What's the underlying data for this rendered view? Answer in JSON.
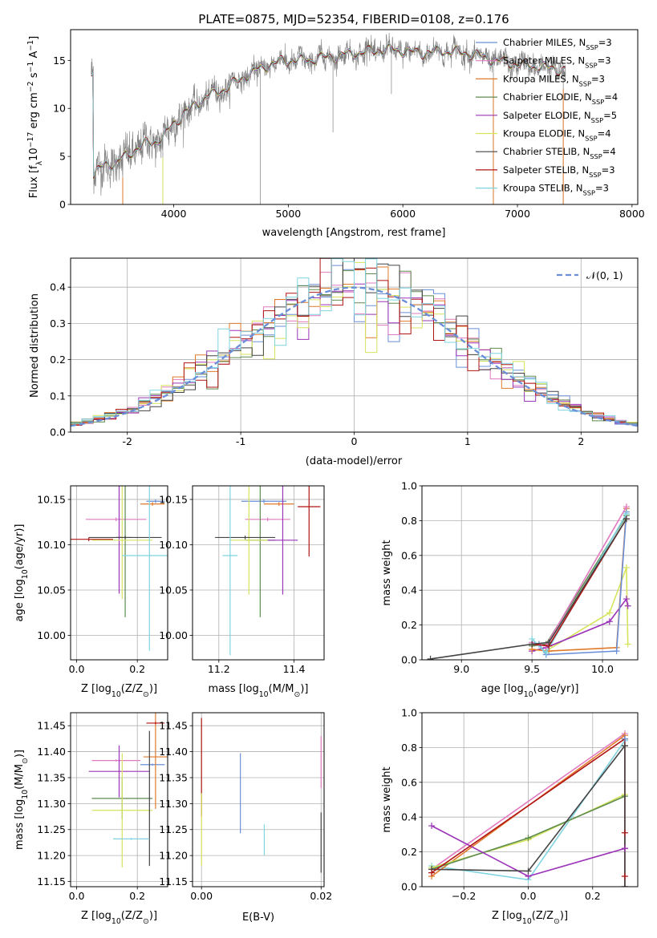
{
  "colors": {
    "gray": "#808080",
    "Chabrier MILES": "#6a8fd8",
    "Salpeter MILES": "#e07ac0",
    "Kroupa MILES": "#e07a2a",
    "Chabrier ELODIE": "#5e8c4f",
    "Salpeter ELODIE": "#9b34b8",
    "Kroupa ELODIE": "#d6e35c",
    "Chabrier STELIB": "#444444",
    "Salpeter STELIB": "#b01414",
    "Kroupa STELIB": "#7fd4e0",
    "gauss": "#6a8fd8"
  },
  "chart_data": [
    {
      "id": "spectrum",
      "type": "line",
      "title": "PLATE=0875, MJD=52354, FIBERID=0108, z=0.176",
      "xlabel": "wavelength [Angstrom, rest frame]",
      "ylabel": "Flux [f",
      "ylabel_sub": "λ",
      "ylabel_mid": "10",
      "ylabel_sup": "−17",
      "ylabel_tail": " erg cm",
      "ylabel_sup2": "−2",
      "ylabel_tail2": " s",
      "ylabel_sup3": "−1",
      "ylabel_tail3": " A",
      "ylabel_sup4": "−1",
      "ylabel_end": "]",
      "xlim": [
        3100,
        8050
      ],
      "ylim": [
        0,
        18.2
      ],
      "xticks": [
        4000,
        5000,
        6000,
        7000,
        8000
      ],
      "yticks": [
        0,
        5,
        10,
        15
      ],
      "continuum": [
        [
          3300,
          3.0
        ],
        [
          3400,
          4.2
        ],
        [
          3500,
          4.3
        ],
        [
          3600,
          5.2
        ],
        [
          3700,
          6.0
        ],
        [
          3800,
          6.5
        ],
        [
          3900,
          6.8
        ],
        [
          4000,
          8.5
        ],
        [
          4100,
          9.5
        ],
        [
          4200,
          10.5
        ],
        [
          4300,
          11.3
        ],
        [
          4400,
          11.8
        ],
        [
          4500,
          12.4
        ],
        [
          4600,
          13.2
        ],
        [
          4700,
          13.8
        ],
        [
          4800,
          14.4
        ],
        [
          4900,
          14.8
        ],
        [
          5000,
          15.0
        ],
        [
          5100,
          15.0
        ],
        [
          5200,
          15.1
        ],
        [
          5300,
          15.3
        ],
        [
          5400,
          15.4
        ],
        [
          5500,
          15.6
        ],
        [
          5600,
          15.8
        ],
        [
          5700,
          15.9
        ],
        [
          5800,
          16.1
        ],
        [
          5900,
          16.1
        ],
        [
          6000,
          16.0
        ],
        [
          6100,
          15.8
        ],
        [
          6200,
          15.8
        ],
        [
          6300,
          15.9
        ],
        [
          6400,
          16.0
        ],
        [
          6500,
          15.8
        ],
        [
          6600,
          15.7
        ],
        [
          6700,
          15.3
        ],
        [
          6800,
          15.0
        ],
        [
          6900,
          14.8
        ],
        [
          7000,
          14.6
        ],
        [
          7100,
          14.5
        ],
        [
          7200,
          14.3
        ],
        [
          7300,
          14.2
        ],
        [
          7400,
          14.0
        ]
      ],
      "legend_placement": "right",
      "legend": [
        {
          "name": "Chabrier MILES, N",
          "sub": "SSP",
          "tail": "=3"
        },
        {
          "name": "Salpeter MILES, N",
          "sub": "SSP",
          "tail": "=3"
        },
        {
          "name": "Kroupa MILES, N",
          "sub": "SSP",
          "tail": "=3"
        },
        {
          "name": "Chabrier ELODIE, N",
          "sub": "SSP",
          "tail": "=4"
        },
        {
          "name": "Salpeter ELODIE, N",
          "sub": "SSP",
          "tail": "=5"
        },
        {
          "name": "Kroupa ELODIE, N",
          "sub": "SSP",
          "tail": "=4"
        },
        {
          "name": "Chabrier STELIB, N",
          "sub": "SSP",
          "tail": "=4"
        },
        {
          "name": "Salpeter STELIB, N",
          "sub": "SSP",
          "tail": "=3"
        },
        {
          "name": "Kroupa STELIB, N",
          "sub": "SSP",
          "tail": "=3"
        }
      ],
      "series_names": [
        "Chabrier MILES",
        "Salpeter MILES",
        "Kroupa MILES",
        "Chabrier ELODIE",
        "Salpeter ELODIE",
        "Kroupa ELODIE",
        "Chabrier STELIB",
        "Salpeter STELIB",
        "Kroupa STELIB"
      ]
    },
    {
      "id": "residuals",
      "type": "line",
      "xlabel": "(data-model)/error",
      "ylabel": "Normed distribution",
      "xlim": [
        -2.5,
        2.5
      ],
      "ylim": [
        0,
        0.48
      ],
      "xticks": [
        -2,
        -1,
        0,
        1,
        2
      ],
      "yticks": [
        0.0,
        0.1,
        0.2,
        0.3,
        0.4
      ],
      "legend_placement": "top-right",
      "legend": "𝒩(0, 1)",
      "bin_width": 0.1
    },
    {
      "id": "age-vs-Z",
      "type": "scatter",
      "xlabel": "Z [log",
      "xlabel_sub": "10",
      "xlabel_tail": "(Z/Z",
      "xlabel_sub2": "⊙",
      "xlabel_end": ")]",
      "ylabel": "age  [log",
      "ylabel_sub": "10",
      "ylabel_end": "(age/yr)]",
      "xlim": [
        -0.02,
        0.3
      ],
      "ylim": [
        9.973,
        10.165
      ],
      "xticks": [
        0.0,
        0.2
      ],
      "yticks": [
        10.0,
        10.05,
        10.1,
        10.15
      ],
      "points": [
        {
          "series": "Chabrier MILES",
          "x": 0.26,
          "y": 10.148,
          "ex": 0.03,
          "ey": 0.002
        },
        {
          "series": "Salpeter MILES",
          "x": 0.13,
          "y": 10.128,
          "ex": 0.1,
          "ey": 0.002
        },
        {
          "series": "Kroupa MILES",
          "x": 0.25,
          "y": 10.145,
          "ex": 0.04,
          "ey": 0.002
        },
        {
          "series": "Chabrier ELODIE",
          "x": 0.16,
          "y": 10.108,
          "ex": 0.02,
          "ey": 0.088
        },
        {
          "series": "Salpeter ELODIE",
          "x": 0.14,
          "y": 10.108,
          "ex": 0.01,
          "ey": 0.062
        },
        {
          "series": "Kroupa ELODIE",
          "x": 0.15,
          "y": 10.105,
          "ex": 0.1,
          "ey": 0.065
        },
        {
          "series": "Chabrier STELIB",
          "x": 0.16,
          "y": 10.108,
          "ex": 0.12,
          "ey": 0.002
        },
        {
          "series": "Salpeter STELIB",
          "x": 0.04,
          "y": 10.106,
          "ex": 0.08,
          "ey": 0.002
        },
        {
          "series": "Kroupa STELIB",
          "x": 0.24,
          "y": 10.088,
          "ex": 0.09,
          "ey": 0.105
        }
      ]
    },
    {
      "id": "age-vs-mass",
      "type": "scatter",
      "xlabel": "mass [log",
      "xlabel_sub": "10",
      "xlabel_tail": "(M/M",
      "xlabel_sub2": "⊙",
      "xlabel_end": ")]",
      "xlim": [
        11.13,
        11.48
      ],
      "ylim": [
        9.973,
        10.165
      ],
      "xticks": [
        11.2,
        11.4
      ],
      "yticks": [
        10.0,
        10.05,
        10.1,
        10.15
      ],
      "points": [
        {
          "series": "Chabrier MILES",
          "x": 11.32,
          "y": 10.148,
          "ex": 0.06,
          "ey": 0.002
        },
        {
          "series": "Salpeter MILES",
          "x": 11.33,
          "y": 10.128,
          "ex": 0.06,
          "ey": 0.002
        },
        {
          "series": "Kroupa MILES",
          "x": 11.36,
          "y": 10.145,
          "ex": 0.04,
          "ey": 0.002
        },
        {
          "series": "Chabrier ELODIE",
          "x": 11.31,
          "y": 10.105,
          "ex": 0.04,
          "ey": 0.085
        },
        {
          "series": "Salpeter ELODIE",
          "x": 11.37,
          "y": 10.105,
          "ex": 0.04,
          "ey": 0.06
        },
        {
          "series": "Kroupa ELODIE",
          "x": 11.28,
          "y": 10.105,
          "ex": 0.05,
          "ey": 0.06
        },
        {
          "series": "Chabrier STELIB",
          "x": 11.27,
          "y": 10.108,
          "ex": 0.08,
          "ey": 0.002
        },
        {
          "series": "Salpeter STELIB",
          "x": 11.44,
          "y": 10.142,
          "ex": 0.03,
          "ey": 0.055
        },
        {
          "series": "Kroupa STELIB",
          "x": 11.23,
          "y": 10.088,
          "ex": 0.02,
          "ey": 0.11
        }
      ]
    },
    {
      "id": "weight-vs-age",
      "type": "line",
      "xlabel": "age  [log",
      "xlabel_sub": "10",
      "xlabel_end": "(age/yr)]",
      "ylabel": "mass weight",
      "xlim": [
        8.72,
        10.25
      ],
      "ylim": [
        0,
        1
      ],
      "xticks": [
        9.0,
        9.5,
        10.0
      ],
      "yticks": [
        0.0,
        0.2,
        0.4,
        0.6,
        0.8,
        1.0
      ],
      "series": [
        {
          "name": "Kroupa ELODIE",
          "x": [
            9.5,
            9.6,
            10.05,
            10.17,
            10.18
          ],
          "y": [
            0.06,
            0.05,
            0.27,
            0.53,
            0.09
          ]
        },
        {
          "name": "Salpeter ELODIE",
          "x": [
            9.5,
            9.6,
            10.05,
            10.17,
            10.18
          ],
          "y": [
            0.05,
            0.07,
            0.22,
            0.35,
            0.31
          ]
        },
        {
          "name": "Chabrier ELODIE",
          "x": [
            9.5,
            9.6,
            10.17
          ],
          "y": [
            0.08,
            0.09,
            0.83
          ]
        },
        {
          "name": "Kroupa MILES",
          "x": [
            9.5,
            9.62,
            10.1,
            10.17
          ],
          "y": [
            0.06,
            0.05,
            0.07,
            0.87
          ]
        },
        {
          "name": "Chabrier MILES",
          "x": [
            9.55,
            9.6,
            10.1,
            10.17
          ],
          "y": [
            0.09,
            0.03,
            0.05,
            0.85
          ]
        },
        {
          "name": "Salpeter MILES",
          "x": [
            9.5,
            9.6,
            10.17
          ],
          "y": [
            0.1,
            0.08,
            0.88
          ]
        },
        {
          "name": "Kroupa STELIB",
          "x": [
            9.5,
            9.6,
            10.17
          ],
          "y": [
            0.12,
            0.04,
            0.84
          ]
        },
        {
          "name": "Salpeter STELIB",
          "x": [
            9.5,
            9.62,
            10.17
          ],
          "y": [
            0.09,
            0.08,
            0.81
          ]
        },
        {
          "name": "Chabrier STELIB",
          "x": [
            8.78,
            9.5,
            9.62,
            10.17
          ],
          "y": [
            0.005,
            0.09,
            0.1,
            0.81
          ]
        }
      ]
    },
    {
      "id": "mass-vs-Z",
      "type": "scatter",
      "xlabel": "Z [log",
      "xlabel_sub": "10",
      "xlabel_tail": "(Z/Z",
      "xlabel_sub2": "⊙",
      "xlabel_end": ")]",
      "ylabel": "mass [log",
      "ylabel_sub": "10",
      "ylabel_tail": "(M/M",
      "ylabel_sub2": "⊙",
      "ylabel_end": ")]",
      "xlim": [
        -0.02,
        0.3
      ],
      "ylim": [
        11.14,
        11.475
      ],
      "xticks": [
        0.0,
        0.2
      ],
      "yticks": [
        11.15,
        11.2,
        11.25,
        11.3,
        11.35,
        11.4,
        11.45
      ],
      "points": [
        {
          "series": "Chabrier MILES",
          "x": 0.25,
          "y": 11.375,
          "ex": 0.04,
          "ey": 0.002
        },
        {
          "series": "Salpeter MILES",
          "x": 0.13,
          "y": 11.383,
          "ex": 0.08,
          "ey": 0.002
        },
        {
          "series": "Kroupa MILES",
          "x": 0.26,
          "y": 11.39,
          "ex": 0.04,
          "ey": 0.1
        },
        {
          "series": "Chabrier ELODIE",
          "x": 0.15,
          "y": 11.31,
          "ex": 0.1,
          "ey": 0.04
        },
        {
          "series": "Salpeter ELODIE",
          "x": 0.14,
          "y": 11.362,
          "ex": 0.1,
          "ey": 0.05
        },
        {
          "series": "Kroupa ELODIE",
          "x": 0.15,
          "y": 11.287,
          "ex": 0.1,
          "ey": 0.11
        },
        {
          "series": "Chabrier STELIB",
          "x": 0.24,
          "y": 11.31,
          "ex": 0.002,
          "ey": 0.13
        },
        {
          "series": "Salpeter STELIB",
          "x": 0.26,
          "y": 11.455,
          "ex": 0.03,
          "ey": 0.002
        },
        {
          "series": "Kroupa STELIB",
          "x": 0.18,
          "y": 11.232,
          "ex": 0.06,
          "ey": 0.002
        }
      ]
    },
    {
      "id": "mass-vs-ebv",
      "type": "scatter",
      "xlabel": "E(B-V)",
      "xlim": [
        -0.0015,
        0.0205
      ],
      "ylim": [
        11.14,
        11.475
      ],
      "xticks": [
        0.0,
        0.02
      ],
      "xtick_labels": [
        "0.00",
        "0.02"
      ],
      "yticks": [
        11.15,
        11.2,
        11.25,
        11.3,
        11.35,
        11.4,
        11.45
      ],
      "points": [
        {
          "series": "Salpeter STELIB",
          "x": 0.0,
          "y": 11.37,
          "ex": 0,
          "ey": 0.095
        },
        {
          "series": "Kroupa ELODIE",
          "x": 0.0,
          "y": 11.25,
          "ex": 0,
          "ey": 0.07
        },
        {
          "series": "Chabrier MILES",
          "x": 0.0065,
          "y": 11.32,
          "ex": 0,
          "ey": 0.077
        },
        {
          "series": "Kroupa STELIB",
          "x": 0.0105,
          "y": 11.23,
          "ex": 0,
          "ey": 0.03
        },
        {
          "series": "Salpeter MILES",
          "x": 0.02,
          "y": 11.38,
          "ex": 0,
          "ey": 0.05
        },
        {
          "series": "Chabrier STELIB",
          "x": 0.02,
          "y": 11.225,
          "ex": 0,
          "ey": 0.058
        }
      ]
    },
    {
      "id": "weight-vs-Z",
      "type": "line",
      "xlabel": "Z [log",
      "xlabel_sub": "10",
      "xlabel_tail": "(Z/Z",
      "xlabel_sub2": "⊙",
      "xlabel_end": ")]",
      "ylabel": "mass weight",
      "xlim": [
        -0.33,
        0.34
      ],
      "ylim": [
        0,
        1
      ],
      "xticks": [
        -0.2,
        0.0,
        0.2
      ],
      "xtick_labels": [
        "−0.2",
        "0.0",
        "0.2"
      ],
      "yticks": [
        0.0,
        0.2,
        0.4,
        0.6,
        0.8,
        1.0
      ],
      "series": [
        {
          "name": "Kroupa STELIB",
          "x": [
            -0.3,
            0.0,
            0.3
          ],
          "y": [
            0.12,
            0.04,
            0.84
          ]
        },
        {
          "name": "Salpeter MILES",
          "x": [
            -0.3,
            0.3
          ],
          "y": [
            0.1,
            0.88
          ]
        },
        {
          "name": "Kroupa MILES",
          "x": [
            -0.3,
            0.3
          ],
          "y": [
            0.06,
            0.87
          ]
        },
        {
          "name": "Kroupa ELODIE",
          "x": [
            -0.3,
            0.0,
            0.3
          ],
          "y": [
            0.11,
            0.27,
            0.53
          ]
        },
        {
          "name": "Chabrier ELODIE",
          "x": [
            -0.3,
            0.0,
            0.3
          ],
          "y": [
            0.1,
            0.28,
            0.52
          ]
        },
        {
          "name": "Salpeter ELODIE",
          "x": [
            -0.3,
            0.0,
            0.3
          ],
          "y": [
            0.35,
            0.06,
            0.22
          ]
        },
        {
          "name": "Chabrier STELIB",
          "x": [
            -0.3,
            0.0,
            0.3
          ],
          "y": [
            0.1,
            0.09,
            0.81
          ]
        },
        {
          "name": "Salpeter STELIB",
          "x": [
            -0.3,
            0.3
          ],
          "y": [
            0.08,
            0.85
          ]
        },
        {
          "name": "Salpeter STELIB",
          "x": [
            0.3,
            0.3
          ],
          "y": [
            0.0,
            0.85
          ]
        },
        {
          "name": "Chabrier STELIB",
          "x": [
            0.3,
            0.3
          ],
          "y": [
            0.0,
            0.81
          ]
        }
      ],
      "markers": [
        {
          "name": "Salpeter STELIB",
          "x": 0.3,
          "y": [
            0.06,
            0.31
          ]
        },
        {
          "name": "Salpeter ELODIE",
          "x": 0.3,
          "y": [
            0.22
          ]
        },
        {
          "name": "Chabrier MILES",
          "x": 0.3,
          "y": [
            0.85
          ]
        }
      ]
    }
  ]
}
